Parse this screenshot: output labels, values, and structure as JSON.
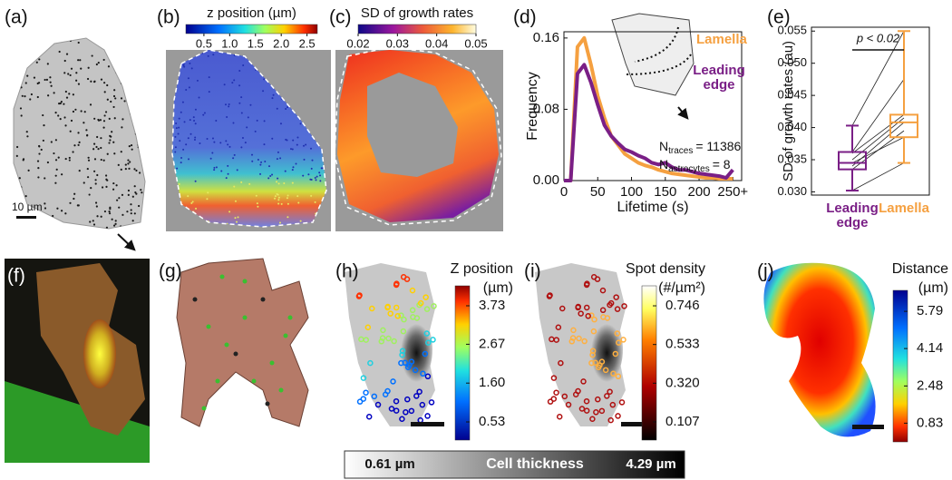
{
  "panels": {
    "a": {
      "label": "(a)",
      "scale_bar": "10 µm"
    },
    "b": {
      "label": "(b)",
      "colorbar": {
        "title": "z position (µm)",
        "lim": [
          0.15,
          2.7
        ],
        "ticks": [
          0.5,
          {
            "value": 1,
            "label": "1.0"
          },
          1.5,
          {
            "value": 2,
            "label": "2.0"
          },
          2.5
        ]
      }
    },
    "c": {
      "label": "(c)",
      "colorbar": {
        "title": "SD of growth rates",
        "lim": [
          0.02,
          0.05
        ],
        "ticks": [
          0.02,
          0.03,
          0.04,
          0.05
        ]
      }
    },
    "d": {
      "label": "(d)"
    },
    "e": {
      "label": "(e)"
    },
    "f": {
      "label": "(f)"
    },
    "g": {
      "label": "(g)"
    },
    "h": {
      "label": "(h)",
      "colorbar": {
        "title": "Z position",
        "unit": "(µm)",
        "lim": [
          0.03,
          4.28
        ],
        "ticks": [
          0.53,
          {
            "value": 1.6,
            "label": "1.60"
          },
          2.67,
          3.73
        ]
      }
    },
    "i": {
      "label": "(i)",
      "colorbar": {
        "title": "Spot density",
        "unit": "(#/µm²)",
        "lim": [
          0.007,
          0.856
        ],
        "ticks": [
          0.107,
          {
            "value": 0.32,
            "label": "0.320"
          },
          0.533,
          0.746
        ]
      }
    },
    "j": {
      "label": "(j)",
      "colorbar": {
        "title": "Distance",
        "unit": "(µm)",
        "lim": [
          0,
          6.72
        ],
        "ticks": [
          0.83,
          2.48,
          4.14,
          5.79
        ]
      }
    },
    "thickness_bar": {
      "min_label": "0.61 µm",
      "title": "Cell thickness",
      "max_label": "4.29 µm"
    }
  },
  "chart_data": [
    {
      "type": "line",
      "x_label": "Lifetime (s)",
      "y_label": "Frequency",
      "x": [
        0,
        10,
        20,
        30,
        40,
        50,
        60,
        70,
        80,
        90,
        100,
        110,
        120,
        130,
        140,
        150,
        160,
        170,
        180,
        190,
        200,
        210,
        220,
        230,
        240,
        250
      ],
      "series": [
        {
          "name": "Lamella",
          "color": "#f5a040",
          "values": [
            0,
            0,
            0.15,
            0.16,
            0.13,
            0.095,
            0.07,
            0.05,
            0.04,
            0.03,
            0.025,
            0.02,
            0.017,
            0.015,
            0.012,
            0.01,
            0.008,
            0.007,
            0.006,
            0.005,
            0.004,
            0.003,
            0.003,
            0.002,
            0.002,
            0.002
          ]
        },
        {
          "name": "Leading edge",
          "color": "#7a1f86",
          "values": [
            0,
            0,
            0.12,
            0.13,
            0.11,
            0.085,
            0.062,
            0.05,
            0.042,
            0.035,
            0.032,
            0.028,
            0.025,
            0.02,
            0.018,
            0.02,
            0.015,
            0.012,
            0.012,
            0.01,
            0.008,
            0.007,
            0.006,
            0.005,
            0.003,
            0.012
          ]
        }
      ],
      "xlim": [
        0,
        263
      ],
      "ylim": [
        0,
        0.167
      ],
      "xticks": [
        0,
        50,
        100,
        150,
        200,
        {
          "value": 250,
          "label": "250+"
        }
      ],
      "yticks": [
        {
          "value": 0,
          "label": "0.00"
        },
        0.08,
        0.16
      ],
      "annotations": [
        {
          "symbol": "N",
          "subscript": "traces",
          "text": "= 11386"
        },
        {
          "symbol": "N",
          "subscript": "astrocytes",
          "text": "= 8"
        }
      ]
    },
    {
      "type": "box",
      "y_label": "SD of growth rates (au)",
      "categories": [
        "Leading edge",
        "Lamella"
      ],
      "boxes": [
        {
          "color": "#7a1f86",
          "min": 0.0302,
          "q1": 0.0335,
          "median": 0.0345,
          "q3": 0.0362,
          "max": 0.0403
        },
        {
          "color": "#f5a040",
          "min": 0.0345,
          "q1": 0.0385,
          "median": 0.0408,
          "q3": 0.042,
          "max": 0.055
        }
      ],
      "pairs": [
        [
          0.0302,
          0.0345
        ],
        [
          0.0335,
          0.0395
        ],
        [
          0.034,
          0.0408
        ],
        [
          0.0345,
          0.0385
        ],
        [
          0.035,
          0.0415
        ],
        [
          0.036,
          0.042
        ],
        [
          0.0362,
          0.0475
        ],
        [
          0.0403,
          0.055
        ]
      ],
      "ylim": [
        0.0295,
        0.0556
      ],
      "yticks": [
        {
          "value": 0.03,
          "label": "0.030"
        },
        0.035,
        {
          "value": 0.04,
          "label": "0.040"
        },
        0.045,
        {
          "value": 0.05,
          "label": "0.050"
        },
        0.055
      ],
      "annotation": "p < 0.02"
    }
  ]
}
